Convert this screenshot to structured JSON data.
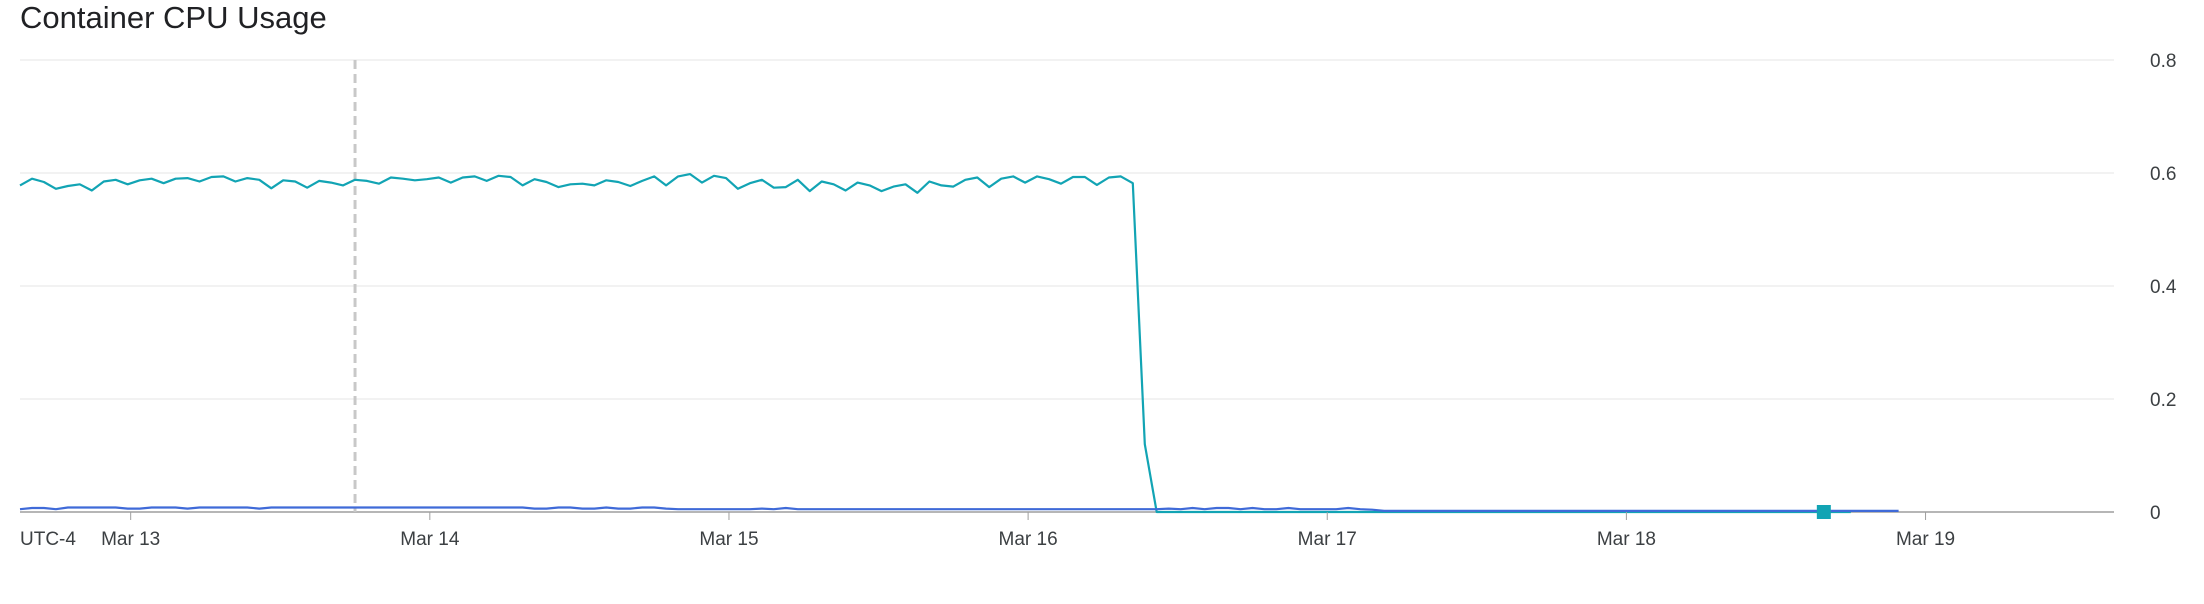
{
  "title": "Container CPU Usage",
  "colors": {
    "series_1": "#12a4b4",
    "series_2": "#3f6ad8",
    "grid": "#e6e6e6",
    "axis": "#9e9e9e",
    "marker_line": "#c8c8c8",
    "end_marker": "#12a4b4"
  },
  "chart_data": {
    "type": "line",
    "title": "Container CPU Usage",
    "xlabel": "",
    "ylabel": "",
    "timezone_label": "UTC-4",
    "x_tick_labels": [
      "Mar 13",
      "Mar 14",
      "Mar 15",
      "Mar 16",
      "Mar 17",
      "Mar 18",
      "Mar 19"
    ],
    "x_tick_days": [
      13,
      14,
      15,
      16,
      17,
      18,
      19
    ],
    "xlim": [
      12.63,
      19.63
    ],
    "y_tick_labels": [
      "0.8",
      "0.6",
      "0.4",
      "0.2",
      "0"
    ],
    "y_tick_values": [
      0.8,
      0.6,
      0.4,
      0.2,
      0
    ],
    "ylim": [
      0,
      0.8
    ],
    "grid": true,
    "vertical_marker_day": 13.75,
    "end_marker": {
      "day": 18.66,
      "value": 0.0
    },
    "series": [
      {
        "x_start": 12.63,
        "x_step": 0.04,
        "values": [
          0.578,
          0.59,
          0.584,
          0.572,
          0.577,
          0.58,
          0.569,
          0.585,
          0.588,
          0.58,
          0.587,
          0.59,
          0.582,
          0.59,
          0.591,
          0.585,
          0.593,
          0.594,
          0.585,
          0.591,
          0.588,
          0.573,
          0.587,
          0.585,
          0.574,
          0.586,
          0.583,
          0.578,
          0.588,
          0.586,
          0.581,
          0.592,
          0.59,
          0.587,
          0.589,
          0.592,
          0.583,
          0.592,
          0.594,
          0.586,
          0.595,
          0.593,
          0.578,
          0.589,
          0.584,
          0.575,
          0.58,
          0.581,
          0.578,
          0.587,
          0.584,
          0.577,
          0.586,
          0.594,
          0.578,
          0.594,
          0.598,
          0.583,
          0.595,
          0.591,
          0.572,
          0.582,
          0.588,
          0.574,
          0.575,
          0.588,
          0.568,
          0.585,
          0.58,
          0.569,
          0.583,
          0.578,
          0.568,
          0.576,
          0.58,
          0.565,
          0.585,
          0.578,
          0.576,
          0.588,
          0.592,
          0.575,
          0.59,
          0.594,
          0.583,
          0.594,
          0.589,
          0.581,
          0.593,
          0.593,
          0.579,
          0.592,
          0.594,
          0.582,
          0.12,
          0.0,
          0.0,
          0.0,
          0.0,
          0.0,
          0.0,
          0.0,
          0.0,
          0.0,
          0.0,
          0.0,
          0.0,
          0.0,
          0.0,
          0.0,
          0.0,
          0.0,
          0.0,
          0.0,
          0.0,
          0.0,
          0.0,
          0.0,
          0.0,
          0.0,
          0.0,
          0.0,
          0.0,
          0.0,
          0.0,
          0.0,
          0.0,
          0.0,
          0.0,
          0.0,
          0.0,
          0.0,
          0.0,
          0.0,
          0.0,
          0.0,
          0.0,
          0.0,
          0.0,
          0.0,
          0.0,
          0.0,
          0.0,
          0.0,
          0.0,
          0.0,
          0.0,
          0.0,
          0.0,
          0.0,
          0.0,
          0.0,
          0.0,
          0.0
        ]
      },
      {
        "x_start": 12.63,
        "x_step": 0.04,
        "values": [
          0.005,
          0.007,
          0.007,
          0.005,
          0.008,
          0.008,
          0.008,
          0.008,
          0.008,
          0.006,
          0.006,
          0.008,
          0.008,
          0.008,
          0.006,
          0.008,
          0.008,
          0.008,
          0.008,
          0.008,
          0.006,
          0.008,
          0.008,
          0.008,
          0.008,
          0.008,
          0.008,
          0.008,
          0.008,
          0.008,
          0.008,
          0.008,
          0.008,
          0.008,
          0.008,
          0.008,
          0.008,
          0.008,
          0.008,
          0.008,
          0.008,
          0.008,
          0.008,
          0.006,
          0.006,
          0.008,
          0.008,
          0.006,
          0.006,
          0.008,
          0.006,
          0.006,
          0.008,
          0.008,
          0.006,
          0.005,
          0.005,
          0.005,
          0.005,
          0.005,
          0.005,
          0.005,
          0.006,
          0.005,
          0.007,
          0.005,
          0.005,
          0.005,
          0.005,
          0.005,
          0.005,
          0.005,
          0.005,
          0.005,
          0.005,
          0.005,
          0.005,
          0.005,
          0.005,
          0.005,
          0.005,
          0.005,
          0.005,
          0.005,
          0.005,
          0.005,
          0.005,
          0.005,
          0.005,
          0.005,
          0.005,
          0.005,
          0.005,
          0.005,
          0.005,
          0.005,
          0.006,
          0.005,
          0.007,
          0.005,
          0.007,
          0.007,
          0.005,
          0.007,
          0.005,
          0.005,
          0.007,
          0.005,
          0.005,
          0.005,
          0.005,
          0.007,
          0.005,
          0.004,
          0.002,
          0.002,
          0.002,
          0.002,
          0.002,
          0.002,
          0.002,
          0.002,
          0.002,
          0.002,
          0.002,
          0.002,
          0.002,
          0.002,
          0.002,
          0.002,
          0.002,
          0.002,
          0.002,
          0.002,
          0.002,
          0.002,
          0.002,
          0.002,
          0.002,
          0.002,
          0.002,
          0.002,
          0.002,
          0.002,
          0.002,
          0.002,
          0.002,
          0.002,
          0.002,
          0.002,
          0.002,
          0.002,
          0.002,
          0.002,
          0.002,
          0.002,
          0.002,
          0.002
        ]
      }
    ]
  }
}
